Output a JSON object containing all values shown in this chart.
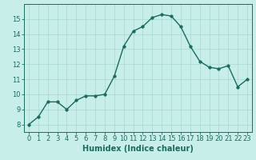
{
  "x": [
    0,
    1,
    2,
    3,
    4,
    5,
    6,
    7,
    8,
    9,
    10,
    11,
    12,
    13,
    14,
    15,
    16,
    17,
    18,
    19,
    20,
    21,
    22,
    23
  ],
  "y": [
    8.0,
    8.5,
    9.5,
    9.5,
    9.0,
    9.6,
    9.9,
    9.9,
    10.0,
    11.2,
    13.2,
    14.2,
    14.5,
    15.1,
    15.3,
    15.2,
    14.5,
    13.2,
    12.2,
    11.8,
    11.7,
    11.9,
    10.5,
    11.0
  ],
  "line_color": "#1a6b5e",
  "marker_color": "#1a6b5e",
  "bg_color": "#c8eeea",
  "grid_color": "#aad8d0",
  "axis_label": "Humidex (Indice chaleur)",
  "ylim": [
    7.5,
    16.0
  ],
  "xlim": [
    -0.5,
    23.5
  ],
  "yticks": [
    8,
    9,
    10,
    11,
    12,
    13,
    14,
    15
  ],
  "xticks": [
    0,
    1,
    2,
    3,
    4,
    5,
    6,
    7,
    8,
    9,
    10,
    11,
    12,
    13,
    14,
    15,
    16,
    17,
    18,
    19,
    20,
    21,
    22,
    23
  ],
  "line_width": 1.0,
  "marker_size": 2.5,
  "tick_fontsize": 6.0,
  "xlabel_fontsize": 7.0
}
